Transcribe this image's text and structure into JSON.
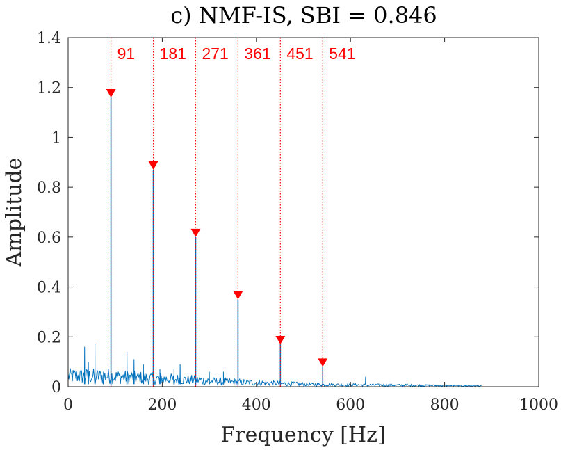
{
  "chart_data": {
    "type": "line",
    "title": "c) NMF-IS, SBI = 0.846",
    "xlabel": "Frequency [Hz]",
    "ylabel": "Amplitude",
    "xlim": [
      0,
      1000
    ],
    "ylim": [
      0,
      1.4
    ],
    "x_ticks": [
      0,
      200,
      400,
      600,
      800,
      1000
    ],
    "x_tick_labels": [
      "0",
      "200",
      "400",
      "600",
      "800",
      "1000"
    ],
    "y_ticks": [
      0,
      0.2,
      0.4,
      0.6,
      0.8,
      1.0,
      1.2,
      1.4
    ],
    "y_tick_labels": [
      "0",
      "0.2",
      "0.4",
      "0.6",
      "0.8",
      "1",
      "1.2",
      "1.4"
    ],
    "grid": false,
    "series": [
      {
        "name": "spectrum",
        "color": "#0072BD",
        "spike_peaks": [
          {
            "x": 91,
            "y": 1.16
          },
          {
            "x": 181,
            "y": 0.87
          },
          {
            "x": 271,
            "y": 0.6
          },
          {
            "x": 361,
            "y": 0.35
          },
          {
            "x": 451,
            "y": 0.17
          },
          {
            "x": 541,
            "y": 0.08
          }
        ],
        "minor_peaks": [
          {
            "x": 35,
            "y": 0.16
          },
          {
            "x": 43,
            "y": 0.1
          },
          {
            "x": 57,
            "y": 0.17
          },
          {
            "x": 75,
            "y": 0.06
          },
          {
            "x": 125,
            "y": 0.14
          },
          {
            "x": 140,
            "y": 0.11
          },
          {
            "x": 160,
            "y": 0.09
          },
          {
            "x": 195,
            "y": 0.07
          },
          {
            "x": 225,
            "y": 0.07
          },
          {
            "x": 238,
            "y": 0.09
          },
          {
            "x": 300,
            "y": 0.06
          },
          {
            "x": 330,
            "y": 0.06
          },
          {
            "x": 632,
            "y": 0.04
          },
          {
            "x": 720,
            "y": 0.02
          }
        ],
        "x_end": 880
      }
    ],
    "harmonic_markers": {
      "color": "#FF0000",
      "labels": [
        "91",
        "181",
        "271",
        "361",
        "451",
        "541"
      ],
      "x": [
        91,
        181,
        271,
        361,
        451,
        541
      ],
      "marker_y": [
        1.16,
        0.87,
        0.6,
        0.35,
        0.17,
        0.08
      ]
    }
  }
}
